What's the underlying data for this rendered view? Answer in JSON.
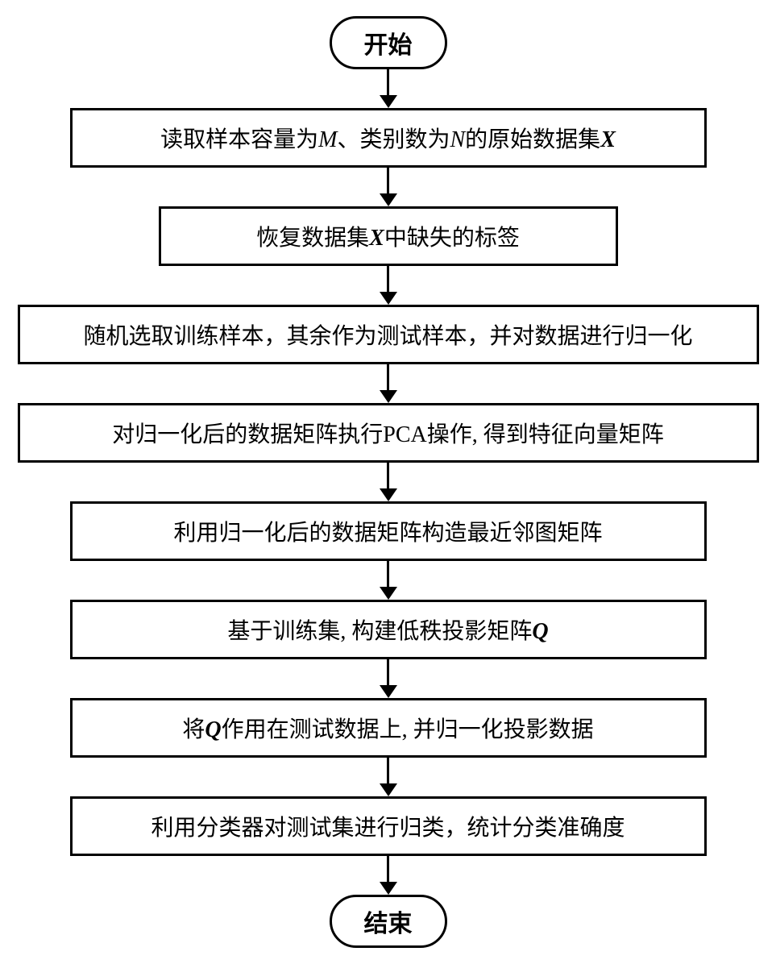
{
  "flowchart": {
    "type": "flowchart",
    "direction": "vertical",
    "background_color": "#ffffff",
    "border_color": "#000000",
    "border_width": 3,
    "text_color": "#000000",
    "font_size": 28,
    "terminal_font_size": 30,
    "arrow_color": "#000000",
    "arrow_height": 48,
    "nodes": [
      {
        "id": "start",
        "shape": "terminal",
        "label": "开始"
      },
      {
        "id": "step1",
        "shape": "process",
        "width": "medium",
        "segments": [
          {
            "text": "读取样本容量为"
          },
          {
            "text": "M",
            "style": "italic"
          },
          {
            "text": "、类别数为"
          },
          {
            "text": "N",
            "style": "italic"
          },
          {
            "text": "的原始数据集"
          },
          {
            "text": "X",
            "style": "bold-italic"
          }
        ]
      },
      {
        "id": "step2",
        "shape": "process",
        "width": "small",
        "segments": [
          {
            "text": "恢复数据集"
          },
          {
            "text": "X",
            "style": "bold-italic"
          },
          {
            "text": "中缺失的标签"
          }
        ]
      },
      {
        "id": "step3",
        "shape": "process",
        "width": "wide",
        "segments": [
          {
            "text": "随机选取训练样本，其余作为测试样本，并对数据进行归一化"
          }
        ]
      },
      {
        "id": "step4",
        "shape": "process",
        "width": "wide",
        "segments": [
          {
            "text": "对归一化后的数据矩阵执行PCA操作, 得到特征向量矩阵"
          }
        ]
      },
      {
        "id": "step5",
        "shape": "process",
        "width": "medium",
        "segments": [
          {
            "text": "利用归一化后的数据矩阵构造最近邻图矩阵"
          }
        ]
      },
      {
        "id": "step6",
        "shape": "process",
        "width": "medium",
        "segments": [
          {
            "text": "基于训练集, 构建低秩投影矩阵"
          },
          {
            "text": "Q",
            "style": "bold-italic"
          }
        ]
      },
      {
        "id": "step7",
        "shape": "process",
        "width": "medium",
        "segments": [
          {
            "text": "将"
          },
          {
            "text": "Q",
            "style": "bold-italic"
          },
          {
            "text": "作用在测试数据上, 并归一化投影数据"
          }
        ]
      },
      {
        "id": "step8",
        "shape": "process",
        "width": "medium",
        "segments": [
          {
            "text": "利用分类器对测试集进行归类，统计分类准确度"
          }
        ]
      },
      {
        "id": "end",
        "shape": "terminal",
        "label": "结束"
      }
    ],
    "edges": [
      {
        "from": "start",
        "to": "step1"
      },
      {
        "from": "step1",
        "to": "step2"
      },
      {
        "from": "step2",
        "to": "step3"
      },
      {
        "from": "step3",
        "to": "step4"
      },
      {
        "from": "step4",
        "to": "step5"
      },
      {
        "from": "step5",
        "to": "step6"
      },
      {
        "from": "step6",
        "to": "step7"
      },
      {
        "from": "step7",
        "to": "step8"
      },
      {
        "from": "step8",
        "to": "end"
      }
    ]
  }
}
